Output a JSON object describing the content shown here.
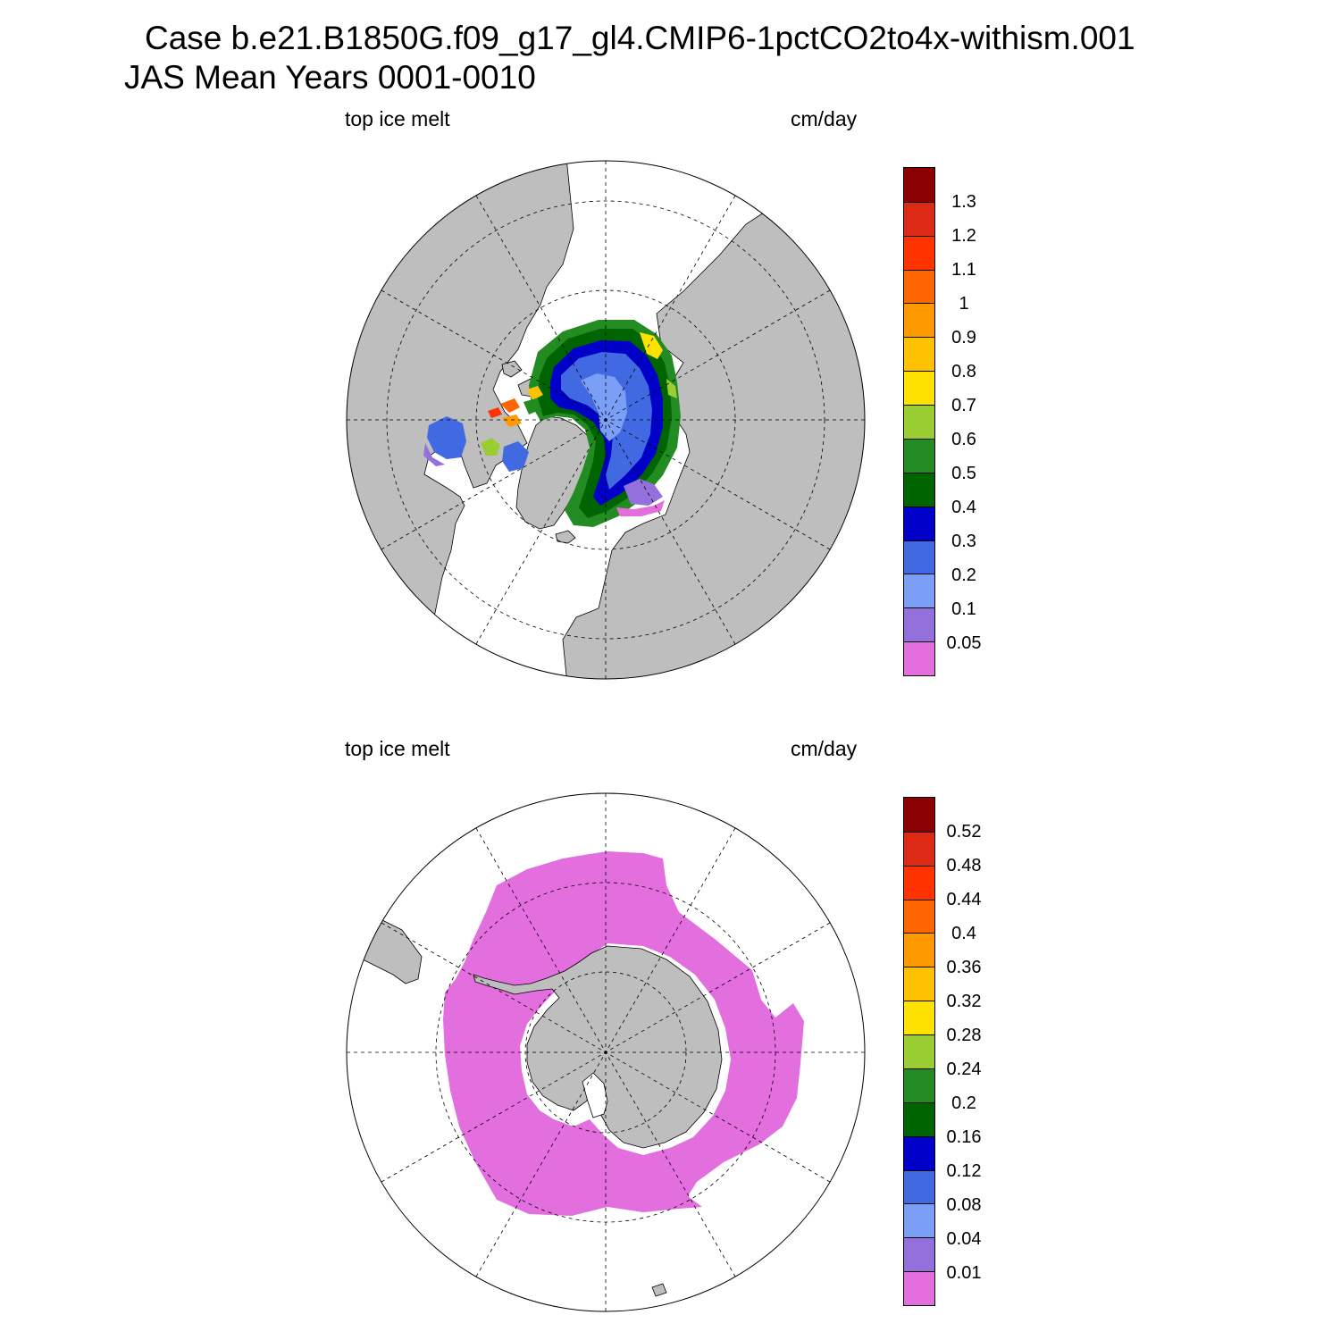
{
  "header": {
    "title_line1": "Case b.e21.B1850G.f09_g17_gl4.CMIP6-1pctCO2to4x-withism.001",
    "title_line2": "JAS Mean   Years 0001-0010"
  },
  "colors": {
    "land": "#bebebe",
    "scale": [
      "#e36ede",
      "#9370db",
      "#7b9ff6",
      "#4169e1",
      "#0000c8",
      "#006400",
      "#228b22",
      "#9acd32",
      "#ffe100",
      "#ffc200",
      "#ff9900",
      "#ff6600",
      "#ff3300",
      "#dc2a14",
      "#8b0000"
    ]
  },
  "panels": [
    {
      "id": "north",
      "variable_label": "top ice melt",
      "units_label": "cm/day",
      "colorbar_labels": [
        "1.3",
        "1.2",
        "1.1",
        "1",
        "0.9",
        "0.8",
        "0.7",
        "0.6",
        "0.5",
        "0.4",
        "0.3",
        "0.2",
        "0.1",
        "0.05"
      ]
    },
    {
      "id": "south",
      "variable_label": "top ice melt",
      "units_label": "cm/day",
      "colorbar_labels": [
        "0.52",
        "0.48",
        "0.44",
        "0.4",
        "0.36",
        "0.32",
        "0.28",
        "0.24",
        "0.2",
        "0.16",
        "0.12",
        "0.08",
        "0.04",
        "0.01"
      ]
    }
  ]
}
